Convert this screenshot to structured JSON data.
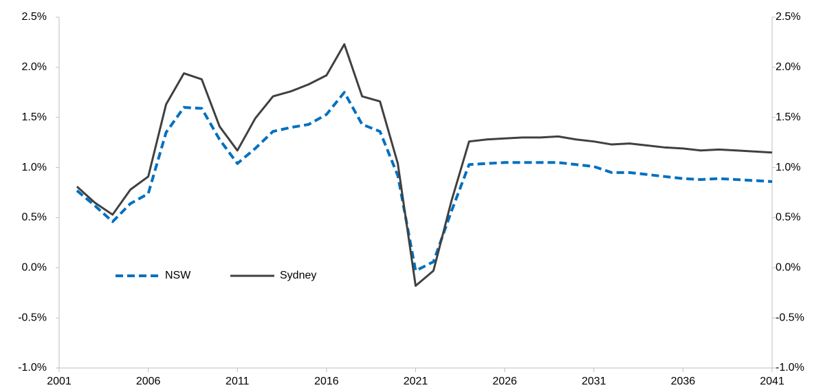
{
  "chart_data": {
    "type": "line",
    "x": [
      2002,
      2003,
      2004,
      2005,
      2006,
      2007,
      2008,
      2009,
      2010,
      2011,
      2012,
      2013,
      2014,
      2015,
      2016,
      2017,
      2018,
      2019,
      2020,
      2021,
      2022,
      2023,
      2024,
      2025,
      2026,
      2027,
      2028,
      2029,
      2030,
      2031,
      2032,
      2033,
      2034,
      2035,
      2036,
      2037,
      2038,
      2039,
      2040,
      2041
    ],
    "series": [
      {
        "name": "NSW",
        "color": "#0070c0",
        "style": "dashed",
        "values": [
          0.77,
          0.62,
          0.46,
          0.64,
          0.74,
          1.35,
          1.6,
          1.59,
          1.28,
          1.04,
          1.19,
          1.36,
          1.4,
          1.43,
          1.53,
          1.75,
          1.43,
          1.36,
          0.92,
          -0.03,
          0.06,
          0.56,
          1.03,
          1.04,
          1.05,
          1.05,
          1.05,
          1.05,
          1.03,
          1.01,
          0.95,
          0.95,
          0.93,
          0.91,
          0.89,
          0.88,
          0.89,
          0.88,
          0.87,
          0.86
        ]
      },
      {
        "name": "Sydney",
        "color": "#404040",
        "style": "solid",
        "values": [
          0.81,
          0.65,
          0.53,
          0.78,
          0.91,
          1.63,
          1.94,
          1.88,
          1.41,
          1.17,
          1.49,
          1.71,
          1.76,
          1.83,
          1.92,
          2.23,
          1.71,
          1.66,
          1.04,
          -0.18,
          -0.03,
          0.66,
          1.26,
          1.28,
          1.29,
          1.3,
          1.3,
          1.31,
          1.28,
          1.26,
          1.23,
          1.24,
          1.22,
          1.2,
          1.19,
          1.17,
          1.18,
          1.17,
          1.16,
          1.15
        ]
      }
    ],
    "xlim": [
      2001,
      2041
    ],
    "xticks": [
      2001,
      2006,
      2011,
      2016,
      2021,
      2026,
      2031,
      2036,
      2041
    ],
    "ylim": [
      -1.0,
      2.5
    ],
    "yticks": [
      {
        "value": -1.0,
        "label": "-1.0%"
      },
      {
        "value": -0.5,
        "label": "-0.5%"
      },
      {
        "value": 0,
        "label": "0.0%"
      },
      {
        "value": 0.5,
        "label": "0.5%"
      },
      {
        "value": 1.0,
        "label": "1.0%"
      },
      {
        "value": 1.5,
        "label": "1.5%"
      },
      {
        "value": 2.0,
        "label": "2.0%"
      },
      {
        "value": 2.5,
        "label": "2.5%"
      }
    ],
    "y2lim": [
      -1.0,
      2.5
    ],
    "y2ticks": [
      {
        "value": -1.0,
        "label": "-1.0%"
      },
      {
        "value": -0.5,
        "label": "-0.5%"
      },
      {
        "value": 0,
        "label": "0.0%"
      },
      {
        "value": 0.5,
        "label": "0.5%"
      },
      {
        "value": 1.0,
        "label": "1.0%"
      },
      {
        "value": 1.5,
        "label": "1.5%"
      },
      {
        "value": 2.0,
        "label": "2.0%"
      },
      {
        "value": 2.5,
        "label": "2.5%"
      }
    ],
    "grid": false
  }
}
